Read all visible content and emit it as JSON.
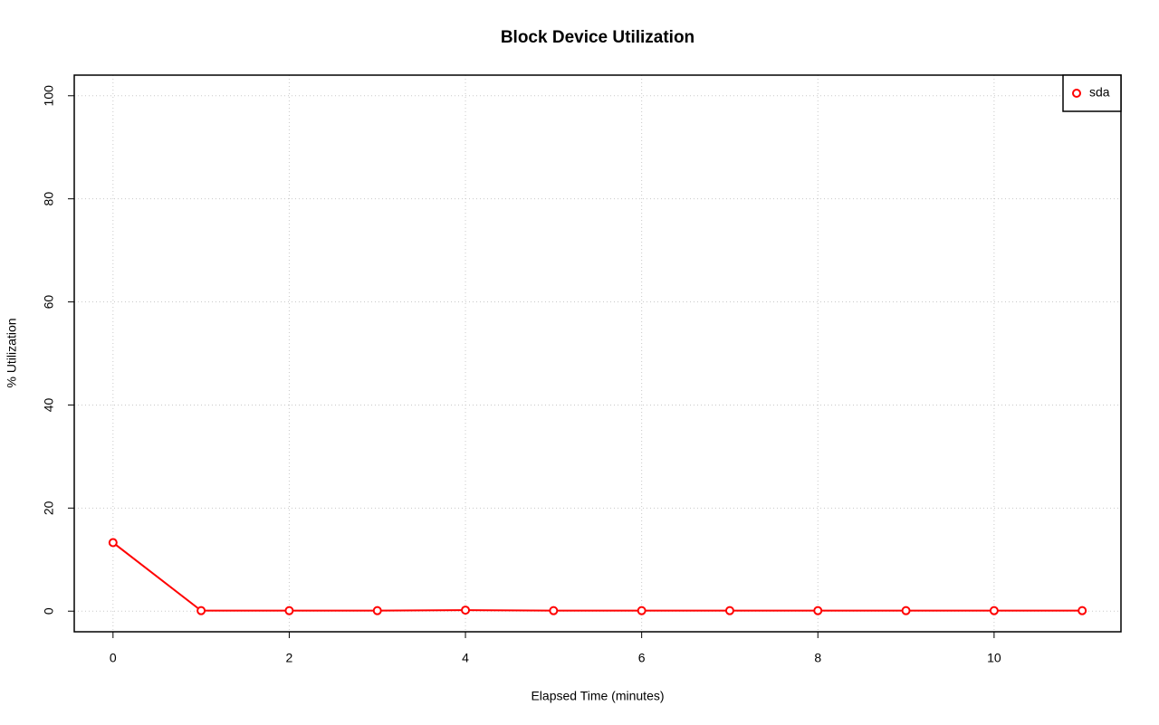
{
  "chart_data": {
    "type": "line",
    "title": "Block Device Utilization",
    "x_label": "Elapsed Time (minutes)",
    "y_label": "% Utilization",
    "x": [
      0,
      1,
      2,
      3,
      4,
      5,
      6,
      7,
      8,
      9,
      10,
      11
    ],
    "series": [
      {
        "name": "sda",
        "color": "#ff0000",
        "values": [
          13.3,
          0.1,
          0.1,
          0.1,
          0.2,
          0.1,
          0.1,
          0.1,
          0.1,
          0.1,
          0.1,
          0.1
        ]
      }
    ],
    "xlim": [
      -0.44,
      11.44
    ],
    "xticks": [
      0,
      2,
      4,
      6,
      8,
      10
    ],
    "ylim": [
      -4,
      104
    ],
    "yticks": [
      0,
      20,
      40,
      60,
      80,
      100
    ],
    "grid": true,
    "legend": "top-right"
  }
}
